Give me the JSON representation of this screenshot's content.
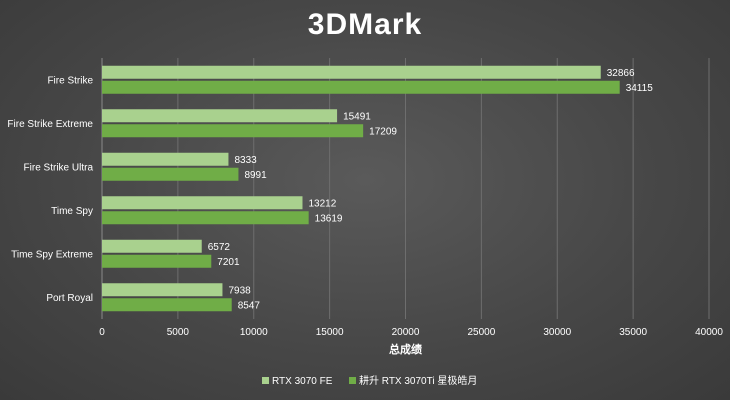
{
  "chart_data": {
    "type": "bar",
    "orientation": "horizontal",
    "title": "3DMark",
    "xlabel": "总成绩",
    "ylabel": "",
    "xlim": [
      0,
      40000
    ],
    "xticks": [
      0,
      5000,
      10000,
      15000,
      20000,
      25000,
      30000,
      35000,
      40000
    ],
    "grid": true,
    "legend_position": "bottom",
    "categories": [
      "Fire Strike",
      "Fire Strike Extreme",
      "Fire Strike Ultra",
      "Time Spy",
      "Time Spy Extreme",
      "Port Royal"
    ],
    "series": [
      {
        "name": "RTX 3070 FE",
        "color": "#a9d18e",
        "values": [
          32866,
          15491,
          8333,
          13212,
          6572,
          7938
        ]
      },
      {
        "name": "耕升 RTX 3070Ti 星极皓月",
        "color": "#70ad47",
        "values": [
          34115,
          17209,
          8991,
          13619,
          7201,
          8547
        ]
      }
    ]
  }
}
